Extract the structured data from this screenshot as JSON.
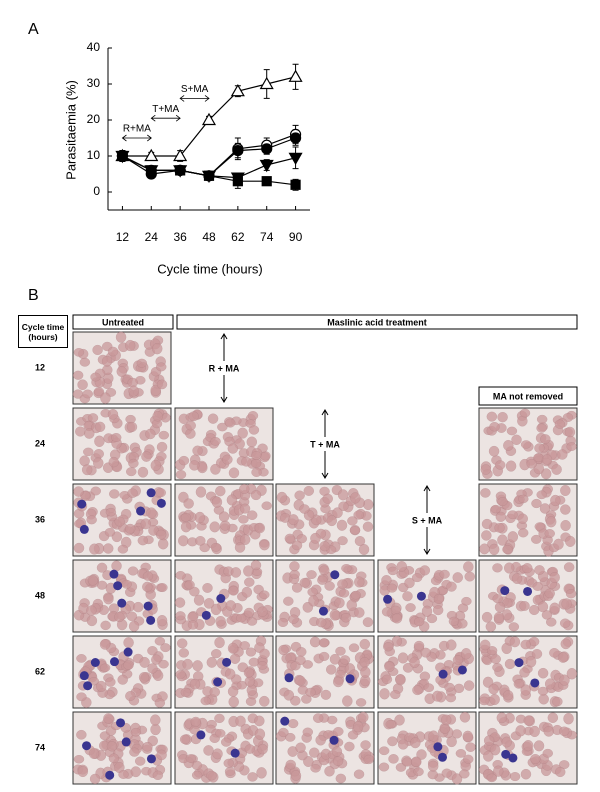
{
  "chart_data": {
    "type": "line",
    "panel_label": "A",
    "y_label": "Parasitaemia (%)",
    "x_label": "Cycle time (hours)",
    "categories": [
      "12",
      "24",
      "36",
      "48",
      "62",
      "74",
      "90"
    ],
    "ylim": [
      -5,
      40
    ],
    "yticks": [
      0,
      10,
      20,
      30,
      40
    ],
    "series": [
      {
        "color": "#000000",
        "marker": "triangle-up",
        "filled": false,
        "values": [
          10,
          10,
          10,
          20,
          28,
          30,
          32
        ],
        "errors": [
          1,
          1,
          1.5,
          1,
          1.5,
          4,
          3.5
        ]
      },
      {
        "color": "#000000",
        "marker": "circle",
        "filled": false,
        "values": [
          10,
          6,
          6,
          4.5,
          12,
          13,
          16
        ],
        "errors": [
          1.5,
          1,
          1,
          0.5,
          3,
          2,
          2.5
        ]
      },
      {
        "color": "#000000",
        "marker": "circle",
        "filled": true,
        "values": [
          10,
          5,
          6,
          4.5,
          11.5,
          12,
          15
        ],
        "errors": [
          1.5,
          1,
          1,
          0.5,
          2,
          1.5,
          2
        ]
      },
      {
        "color": "#000000",
        "marker": "triangle-down",
        "filled": true,
        "values": [
          10,
          6,
          6,
          4.5,
          4,
          7.5,
          9.5
        ],
        "errors": [
          1,
          1,
          1,
          0.5,
          1,
          1.5,
          3
        ]
      },
      {
        "color": "#000000",
        "marker": "square",
        "filled": true,
        "values": [
          10,
          6,
          6,
          4.5,
          3,
          3,
          2
        ],
        "errors": [
          1.5,
          1,
          1,
          0.5,
          2,
          0.5,
          1.5
        ]
      }
    ],
    "annotations": [
      "R+MA",
      "T+MA",
      "S+MA"
    ]
  },
  "panel_b": {
    "label": "B",
    "corner": "Cycle time (hours)",
    "headers": [
      "Untreated",
      "Maslinic acid treatment",
      "MA not removed"
    ],
    "rows": [
      "12",
      "24",
      "36",
      "48",
      "62",
      "74"
    ],
    "treatments": [
      "R + MA",
      "T + MA",
      "S + MA"
    ]
  }
}
